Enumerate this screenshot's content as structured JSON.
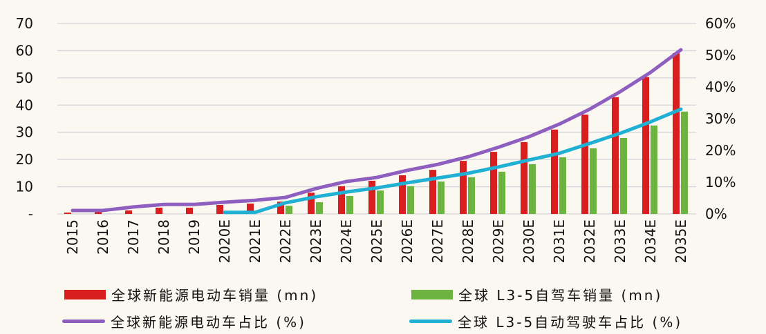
{
  "chart_data": {
    "type": "bar+line",
    "categories": [
      "2015",
      "2016",
      "2017",
      "2018",
      "2019",
      "2020E",
      "2021E",
      "2022E",
      "2023E",
      "2024E",
      "2025E",
      "2026E",
      "2027E",
      "2028E",
      "2029E",
      "2030E",
      "2031E",
      "2032E",
      "2033E",
      "2034E",
      "2035E"
    ],
    "left_axis": {
      "range": [
        0,
        70
      ],
      "ticks": [
        "-",
        "10",
        "20",
        "30",
        "40",
        "50",
        "60",
        "70"
      ]
    },
    "right_axis": {
      "range": [
        0,
        60
      ],
      "ticks": [
        "0%",
        "10%",
        "20%",
        "30%",
        "40%",
        "50%",
        "60%"
      ]
    },
    "grid": true,
    "legend_position": "bottom",
    "series": [
      {
        "name": "全球新能源电动车销量 (mn)",
        "type": "bar",
        "axis": "left",
        "color": "#d81e1e",
        "values": [
          0.5,
          0.7,
          1.3,
          2.3,
          2.3,
          3.3,
          3.8,
          4.5,
          7.8,
          10.2,
          12.2,
          14.2,
          16.2,
          19.5,
          22.8,
          26.4,
          31.0,
          36.5,
          42.9,
          50.3,
          59.1
        ]
      },
      {
        "name": "全球 L3-5自驾车销量 (mn)",
        "type": "bar",
        "axis": "left",
        "color": "#6db33f",
        "values": [
          null,
          null,
          null,
          null,
          null,
          null,
          null,
          3.0,
          4.3,
          6.6,
          8.6,
          10.2,
          11.9,
          13.5,
          15.5,
          18.3,
          20.8,
          24.1,
          27.9,
          32.5,
          37.6
        ]
      },
      {
        "name": "全球新能源电动车占比 (%)",
        "type": "line",
        "axis": "right",
        "color": "#8e5fbf",
        "values": [
          1.1,
          1.1,
          2.2,
          3.0,
          3.0,
          3.7,
          4.3,
          5.2,
          8.0,
          10.2,
          11.5,
          13.7,
          15.6,
          18.0,
          21.0,
          24.3,
          28.3,
          33.0,
          38.5,
          44.6,
          51.7
        ]
      },
      {
        "name": "全球 L3-5自动驾驶车占比 (%)",
        "type": "line",
        "axis": "right",
        "color": "#1fb0d4",
        "values": [
          null,
          null,
          null,
          null,
          null,
          0.5,
          0.5,
          3.5,
          5.4,
          6.9,
          8.2,
          9.8,
          11.3,
          12.8,
          14.8,
          17.0,
          19.1,
          22.2,
          25.4,
          29.0,
          33.0
        ]
      }
    ]
  }
}
